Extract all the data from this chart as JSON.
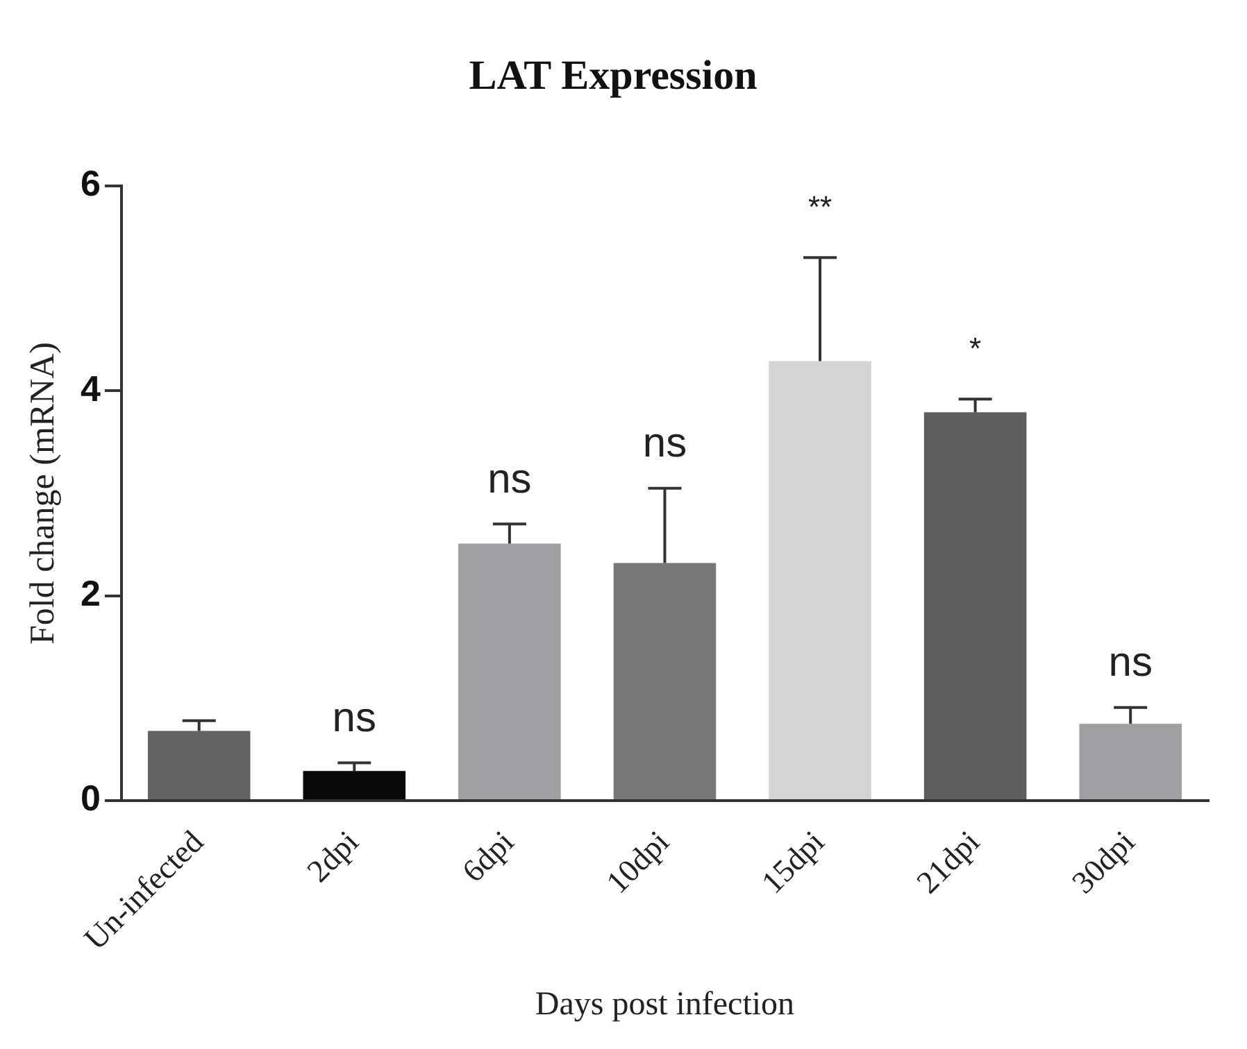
{
  "chart_data": {
    "type": "bar",
    "title": "LAT Expression",
    "xlabel": "Days post infection",
    "ylabel": "Fold change (mRNA)",
    "categories": [
      "Un-infected",
      "2dpi",
      "6dpi",
      "10dpi",
      "15dpi",
      "21dpi",
      "30dpi"
    ],
    "values": [
      0.68,
      0.29,
      2.51,
      2.32,
      4.29,
      3.79,
      0.75
    ],
    "errors": [
      0.1,
      0.08,
      0.19,
      0.73,
      1.01,
      0.13,
      0.16
    ],
    "colors": [
      "#636363",
      "#0a0a0a",
      "#a0a0a2",
      "#787878",
      "#d4d4d4",
      "#5e5e5e",
      "#a0a0a2"
    ],
    "ylim": [
      0,
      6
    ],
    "yticks": [
      0,
      2,
      4,
      6
    ],
    "grid": false,
    "legend": false,
    "annotations": [
      "ns",
      "ns",
      "ns",
      "**",
      "*",
      "ns"
    ]
  }
}
